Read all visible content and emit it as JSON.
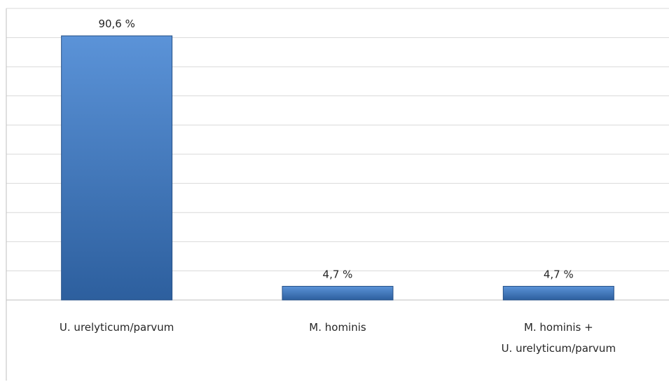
{
  "chart_data": {
    "type": "bar",
    "categories": [
      [
        "U. urelyticum/parvum"
      ],
      [
        "M. hominis"
      ],
      [
        "M. hominis +",
        "U. urelyticum/parvum"
      ]
    ],
    "values": [
      90.6,
      4.7,
      4.7
    ],
    "data_labels": [
      "90,6 %",
      "4,7 %",
      "4,7 %"
    ],
    "ylim": [
      0,
      100
    ],
    "grid": true,
    "legend": "none",
    "colors": {
      "bar_top": "#5b93d8",
      "bar_bottom": "#2d5f9e",
      "bar_edge": "#244f86"
    }
  }
}
